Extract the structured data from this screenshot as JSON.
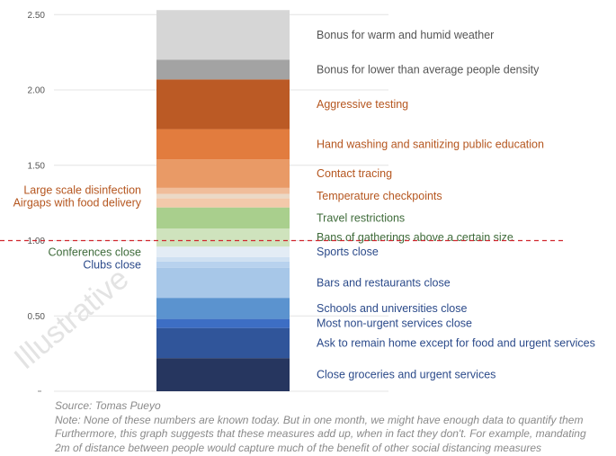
{
  "chart_data": {
    "type": "bar",
    "stacked": true,
    "title": "",
    "xlabel": "",
    "ylabel": "",
    "ylim": [
      0,
      2.55
    ],
    "y_ticks": [
      "",
      "0.50",
      "1.00",
      "1.50",
      "2.00",
      "2.50"
    ],
    "y_tick_values": [
      0,
      0.5,
      1.0,
      1.5,
      2.0,
      2.5
    ],
    "grid": true,
    "reference_line": {
      "value": 1.0,
      "style": "dashed",
      "color": "#d0262e"
    },
    "watermark": "Illustrative",
    "segments": [
      {
        "label": "Close groceries and urgent services",
        "value": 0.22,
        "color": "#26365f",
        "label_color": "#2b4a8a",
        "label_side": "right"
      },
      {
        "label": "Ask to remain home except for food and urgent services",
        "value": 0.2,
        "color": "#30559a",
        "label_color": "#2b4a8a",
        "label_side": "right"
      },
      {
        "label": "Most non-urgent services close",
        "value": 0.06,
        "color": "#3d6ec4",
        "label_color": "#2b4a8a",
        "label_side": "right"
      },
      {
        "label": "Schools and universities close",
        "value": 0.14,
        "color": "#5b93cf",
        "label_color": "#2b4a8a",
        "label_side": "right"
      },
      {
        "label": "Bars and restaurants close",
        "value": 0.2,
        "color": "#a7c7e8",
        "label_color": "#2b4a8a",
        "label_side": "right"
      },
      {
        "label": "Clubs close",
        "value": 0.04,
        "color": "#b8d2ee",
        "label_color": "#2b4a8a",
        "label_side": "left"
      },
      {
        "label": "Conferences close",
        "value": 0.03,
        "color": "#cfe0f2",
        "label_color": "#3e6b3a",
        "label_side": "left"
      },
      {
        "label": "Sports close",
        "value": 0.07,
        "color": "#e3ecf5",
        "label_color": "#2b4a8a",
        "label_side": "right"
      },
      {
        "label": "Bans of gatherings above a certain size",
        "value": 0.12,
        "color": "#cfe3bd",
        "label_color": "#3e6b3a",
        "label_side": "right"
      },
      {
        "label": "Travel restrictions",
        "value": 0.14,
        "color": "#a9cf8d",
        "label_color": "#3e6b3a",
        "label_side": "right"
      },
      {
        "label": "Airgaps with food delivery",
        "value": 0.06,
        "color": "#f3c9aa",
        "label_color": "#b5561f",
        "label_side": "left"
      },
      {
        "label": "Temperature checkpoints",
        "value": 0.03,
        "color": "#ebd9c6",
        "label_color": "#b5561f",
        "label_side": "right"
      },
      {
        "label": "Large scale disinfection",
        "value": 0.04,
        "color": "#f0bd9a",
        "label_color": "#b5561f",
        "label_side": "left"
      },
      {
        "label": "Contact tracing",
        "value": 0.19,
        "color": "#e99a66",
        "label_color": "#b5561f",
        "label_side": "right"
      },
      {
        "label": "Hand washing and sanitizing public education",
        "value": 0.2,
        "color": "#e27c3e",
        "label_color": "#b5561f",
        "label_side": "right"
      },
      {
        "label": "Aggressive testing",
        "value": 0.33,
        "color": "#bb5a25",
        "label_color": "#b5561f",
        "label_side": "right"
      },
      {
        "label": "Bonus for lower than average people density",
        "value": 0.13,
        "color": "#a3a3a3",
        "label_color": "#555555",
        "label_side": "right"
      },
      {
        "label": "Bonus for warm and humid weather",
        "value": 0.33,
        "color": "#d6d6d6",
        "label_color": "#555555",
        "label_side": "right"
      }
    ],
    "source": "Source: Tomas Pueyo",
    "notes": [
      "Note: None of these numbers are known today. But in one month, we might have enough data to quantify them",
      "Furthermore, this graph suggests that these measures add up, when in fact they don't. For example, mandating",
      "2m of distance between people would capture much of the benefit of other social distancing measures"
    ]
  }
}
